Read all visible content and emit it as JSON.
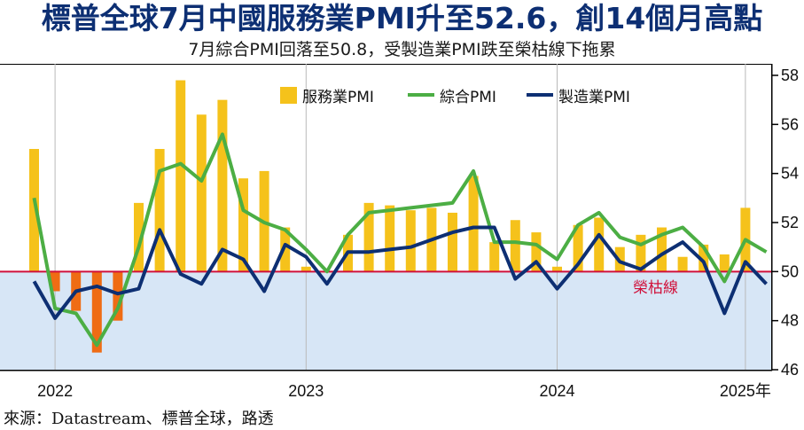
{
  "title": "標普全球7月中國服務業PMI升至52.6，創14個月高點",
  "subtitle": "7月綜合PMI回落至50.8，受製造業PMI跌至榮枯線下拖累",
  "source": "來源：Datastream、標普全球，路透",
  "colors": {
    "services_up": "#f5c21b",
    "services_down": "#ef6c14",
    "composite": "#4cae44",
    "manufacturing": "#0d2f73",
    "below_band": "#d7e6f6",
    "ref_line": "#d0103a",
    "title": "#0d2f73"
  },
  "chart_data": {
    "type": "bar",
    "x_tick_labels": [
      "2022",
      "2023",
      "2024",
      "2025年"
    ],
    "x_tick_index": [
      1,
      13,
      25,
      34
    ],
    "y_tick_labels": [
      "58",
      "56",
      "54",
      "52",
      "50",
      "48",
      "46"
    ],
    "ylim": [
      46,
      58
    ],
    "baseline": 50,
    "reference_line": {
      "value": 50,
      "label": "榮枯線"
    },
    "legend": [
      "服務業PMI",
      "綜合PMI",
      "製造業PMI"
    ],
    "legend_position": "top-right",
    "n_periods": 37,
    "series": [
      {
        "name": "服務業PMI",
        "kind": "bar",
        "values": [
          55.0,
          49.2,
          48.4,
          46.7,
          48.0,
          52.8,
          55.0,
          57.8,
          56.4,
          57.0,
          53.8,
          54.1,
          51.8,
          50.2,
          50.0,
          51.5,
          52.8,
          52.7,
          52.5,
          52.6,
          52.4,
          53.9,
          51.2,
          52.1,
          51.6,
          50.2,
          51.9,
          52.2,
          51.0,
          51.5,
          51.8,
          50.6,
          51.1,
          50.7,
          52.6,
          null,
          null
        ]
      },
      {
        "name": "綜合PMI",
        "kind": "line",
        "values": [
          53.0,
          48.5,
          48.3,
          47.0,
          48.5,
          51.0,
          54.1,
          54.4,
          53.7,
          55.6,
          52.5,
          52.0,
          51.7,
          50.9,
          50.0,
          51.5,
          52.4,
          52.5,
          52.6,
          52.7,
          52.8,
          54.1,
          51.2,
          51.2,
          51.1,
          50.5,
          51.9,
          52.4,
          51.4,
          51.1,
          51.5,
          51.8,
          51.0,
          49.6,
          51.3,
          50.8,
          null
        ]
      },
      {
        "name": "製造業PMI",
        "kind": "line",
        "values": [
          49.6,
          48.1,
          49.2,
          49.4,
          49.1,
          49.3,
          51.7,
          49.9,
          49.5,
          50.9,
          50.5,
          49.2,
          51.1,
          50.6,
          49.5,
          50.8,
          50.8,
          50.9,
          51.0,
          51.3,
          51.6,
          51.8,
          51.8,
          49.7,
          50.4,
          49.3,
          50.3,
          51.5,
          50.4,
          50.1,
          50.7,
          51.2,
          50.4,
          48.3,
          50.4,
          49.5,
          null
        ]
      }
    ]
  }
}
